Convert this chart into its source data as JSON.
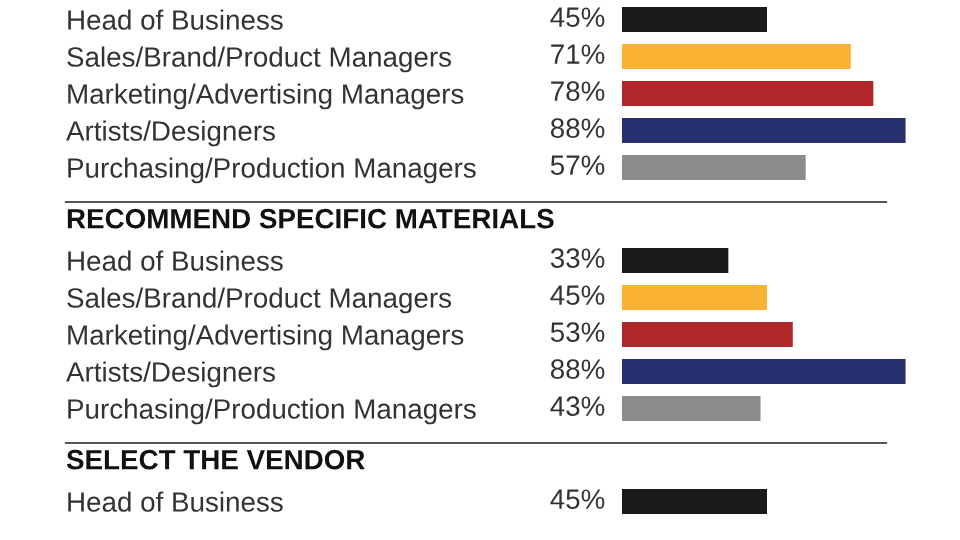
{
  "chart_data": [
    {
      "type": "bar",
      "orientation": "horizontal",
      "categories": [
        "Head of Business",
        "Sales/Brand/Product Managers",
        "Marketing/Advertising Managers",
        "Artists/Designers",
        "Purchasing/Production Managers"
      ],
      "values": [
        45,
        71,
        78,
        88,
        57
      ],
      "value_labels": [
        "45%",
        "71%",
        "78%",
        "88%",
        "57%"
      ],
      "colors": [
        "#1a1a1a",
        "#f9b233",
        "#b0272a",
        "#27306e",
        "#8c8c8c"
      ],
      "xlim": [
        0,
        90
      ],
      "grid": false,
      "legend": false
    },
    {
      "type": "bar",
      "orientation": "horizontal",
      "title": "RECOMMEND SPECIFIC MATERIALS",
      "categories": [
        "Head of Business",
        "Sales/Brand/Product Managers",
        "Marketing/Advertising Managers",
        "Artists/Designers",
        "Purchasing/Production Managers"
      ],
      "values": [
        33,
        45,
        53,
        88,
        43
      ],
      "value_labels": [
        "33%",
        "45%",
        "53%",
        "88%",
        "43%"
      ],
      "colors": [
        "#1a1a1a",
        "#f9b233",
        "#b0272a",
        "#27306e",
        "#8c8c8c"
      ],
      "xlim": [
        0,
        90
      ],
      "grid": false,
      "legend": false
    },
    {
      "type": "bar",
      "orientation": "horizontal",
      "title": "SELECT THE VENDOR",
      "categories": [
        "Head of Business"
      ],
      "values": [
        45
      ],
      "value_labels": [
        "45%"
      ],
      "colors": [
        "#1a1a1a"
      ],
      "grid": false,
      "legend": false
    }
  ]
}
